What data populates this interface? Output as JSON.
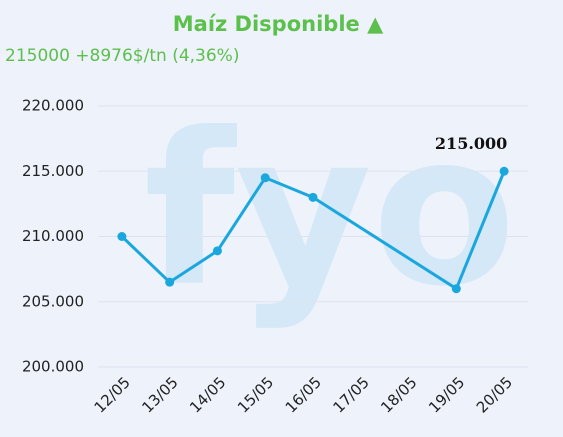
{
  "chart_data": {
    "type": "line",
    "title": "Maíz Disponible ▲",
    "subtitle": "215000 +8976$/tn (4,36%)",
    "watermark": "fyo",
    "categories": [
      "12/05",
      "13/05",
      "14/05",
      "15/05",
      "16/05",
      "17/05",
      "18/05",
      "19/05",
      "20/05"
    ],
    "series": [
      {
        "name": "Maíz Disponible",
        "color": "#1aa7dd",
        "values": [
          210000,
          206500,
          208900,
          214500,
          213000,
          null,
          null,
          206000,
          215000
        ],
        "value_labels": [
          null,
          null,
          null,
          null,
          null,
          null,
          null,
          null,
          "215.000"
        ]
      }
    ],
    "span_gaps": true,
    "ylim": [
      200000,
      220000
    ],
    "yticks": [
      {
        "value": 200000,
        "label": "200.000"
      },
      {
        "value": 205000,
        "label": "205.000"
      },
      {
        "value": 210000,
        "label": "210.000"
      },
      {
        "value": 215000,
        "label": "215.000"
      },
      {
        "value": 220000,
        "label": "220.000"
      }
    ],
    "grid": true
  }
}
